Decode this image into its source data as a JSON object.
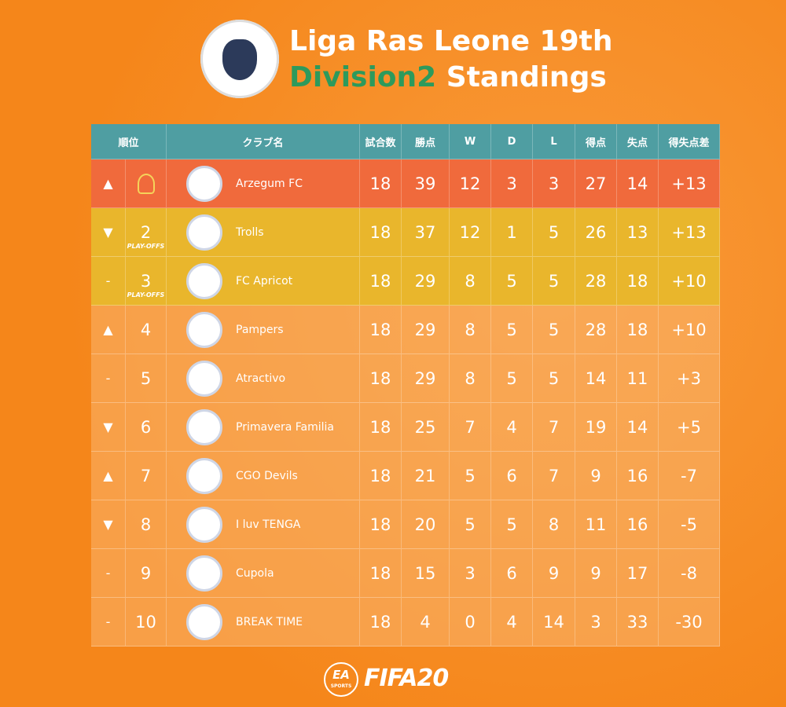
{
  "header": {
    "title_line1": "Liga Ras Leone 19th",
    "title_division": "Division2",
    "title_rest": "Standings"
  },
  "table": {
    "columns": [
      "順位",
      "クラブ名",
      "試合数",
      "勝点",
      "W",
      "D",
      "L",
      "得点",
      "失点",
      "得失点差"
    ],
    "rows": [
      {
        "move": "▲",
        "rank": null,
        "note": null,
        "club": "Arzegum FC",
        "stats": [
          18,
          39,
          12,
          3,
          3,
          27,
          14,
          "+13"
        ]
      },
      {
        "move": "▼",
        "rank": 2,
        "note": "PLAY-OFFS",
        "club": "Trolls",
        "stats": [
          18,
          37,
          12,
          1,
          5,
          26,
          13,
          "+13"
        ]
      },
      {
        "move": "-",
        "rank": 3,
        "note": "PLAY-OFFS",
        "club": "FC Apricot",
        "stats": [
          18,
          29,
          8,
          5,
          5,
          28,
          18,
          "+10"
        ]
      },
      {
        "move": "▲",
        "rank": 4,
        "note": null,
        "club": "Pampers",
        "stats": [
          18,
          29,
          8,
          5,
          5,
          28,
          18,
          "+10"
        ]
      },
      {
        "move": "-",
        "rank": 5,
        "note": null,
        "club": "Atractivo",
        "stats": [
          18,
          29,
          8,
          5,
          5,
          14,
          11,
          "+3"
        ]
      },
      {
        "move": "▼",
        "rank": 6,
        "note": null,
        "club": "Primavera Familia",
        "stats": [
          18,
          25,
          7,
          4,
          7,
          19,
          14,
          "+5"
        ]
      },
      {
        "move": "▲",
        "rank": 7,
        "note": null,
        "club": "CGO Devils",
        "stats": [
          18,
          21,
          5,
          6,
          7,
          9,
          16,
          "-7"
        ]
      },
      {
        "move": "▼",
        "rank": 8,
        "note": null,
        "club": "I luv TENGA",
        "stats": [
          18,
          20,
          5,
          5,
          8,
          11,
          16,
          "-5"
        ]
      },
      {
        "move": "-",
        "rank": 9,
        "note": null,
        "club": "Cupola",
        "stats": [
          18,
          15,
          3,
          6,
          9,
          9,
          17,
          "-8"
        ]
      },
      {
        "move": "-",
        "rank": 10,
        "note": null,
        "club": "BREAK TIME",
        "stats": [
          18,
          4,
          0,
          4,
          14,
          3,
          33,
          "-30"
        ]
      }
    ]
  },
  "footer": {
    "ea": "EA",
    "sports": "SPORTS",
    "game": "FIFA20"
  }
}
